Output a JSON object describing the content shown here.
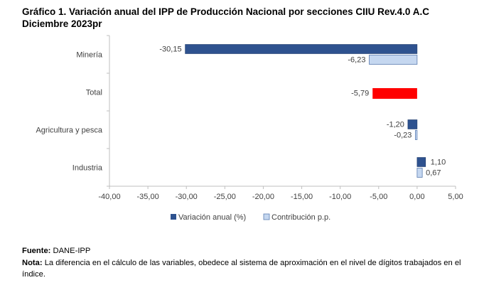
{
  "title_line1": "Gráfico 1. Variación anual del IPP de Producción Nacional por secciones CIIU Rev.4.0 A.C",
  "title_line2": "Diciembre 2023pr",
  "footer": {
    "source_label": "Fuente:",
    "source_text": " DANE-IPP",
    "note_label": "Nota:",
    "note_text": " La diferencia en el cálculo de las variables, obedece al sistema de aproximación en el nivel de dígitos trabajados en el índice."
  },
  "chart_data": {
    "type": "bar",
    "orientation": "horizontal",
    "categories": [
      "Minería",
      "Total",
      "Agricultura y pesca",
      "Industria"
    ],
    "series": [
      {
        "name": "Variación anual (%)",
        "color": "#2E528F",
        "values": [
          -30.15,
          null,
          -1.2,
          1.1
        ],
        "labels": [
          "-30,15",
          "",
          "-1,20",
          "1,10"
        ]
      },
      {
        "name": "Contribución p.p.",
        "color": "#C5D7F0",
        "values": [
          -6.23,
          null,
          -0.23,
          0.67
        ],
        "labels": [
          "-6,23",
          "",
          "-0,23",
          "0,67"
        ]
      }
    ],
    "total": {
      "value": -5.79,
      "label": "-5,79",
      "color": "#FF0000"
    },
    "xlim": [
      -40,
      5
    ],
    "xticks": [
      -40,
      -35,
      -30,
      -25,
      -20,
      -15,
      -10,
      -5,
      0,
      5
    ],
    "xtick_labels": [
      "-40,00",
      "-35,00",
      "-30,00",
      "-25,00",
      "-20,00",
      "-15,00",
      "-10,00",
      "-5,00",
      "0,00",
      "5,00"
    ],
    "legend_position": "bottom",
    "grid": false
  }
}
